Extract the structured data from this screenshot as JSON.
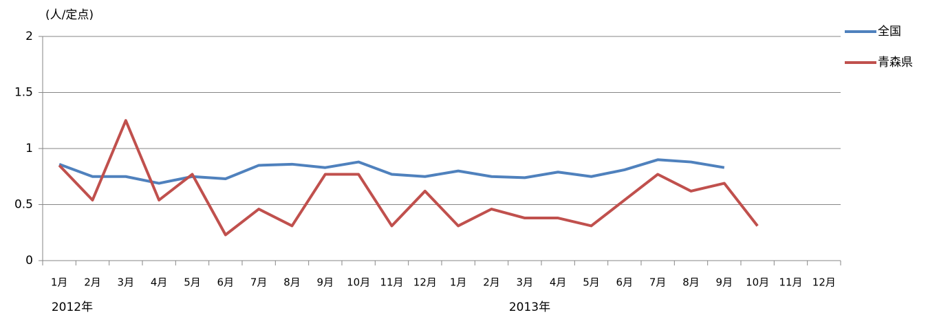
{
  "chart_data": {
    "type": "line",
    "y_label": "(人/定点)",
    "categories": [
      "1月",
      "2月",
      "3月",
      "4月",
      "5月",
      "6月",
      "7月",
      "8月",
      "9月",
      "10月",
      "11月",
      "12月",
      "1月",
      "2月",
      "3月",
      "4月",
      "5月",
      "6月",
      "7月",
      "8月",
      "9月",
      "10月",
      "11月",
      "12月"
    ],
    "year_labels": [
      "2012年",
      "2013年"
    ],
    "series": [
      {
        "name": "全国",
        "color": "#4f81bd",
        "values": [
          0.86,
          0.75,
          0.75,
          0.69,
          0.75,
          0.73,
          0.85,
          0.86,
          0.83,
          0.88,
          0.77,
          0.75,
          0.8,
          0.75,
          0.74,
          0.79,
          0.75,
          0.81,
          0.9,
          0.88,
          0.83,
          null,
          null,
          null
        ]
      },
      {
        "name": "青森県",
        "color": "#c0504d",
        "values": [
          0.85,
          0.54,
          1.25,
          0.54,
          0.77,
          0.23,
          0.46,
          0.31,
          0.77,
          0.77,
          0.31,
          0.62,
          0.31,
          0.46,
          0.38,
          0.38,
          0.31,
          0.54,
          0.77,
          0.62,
          0.69,
          0.31,
          null,
          null
        ]
      }
    ],
    "ylim": [
      0,
      2
    ],
    "yticks": [
      0,
      0.5,
      1,
      1.5,
      2
    ],
    "grid": true,
    "legend": "right"
  }
}
